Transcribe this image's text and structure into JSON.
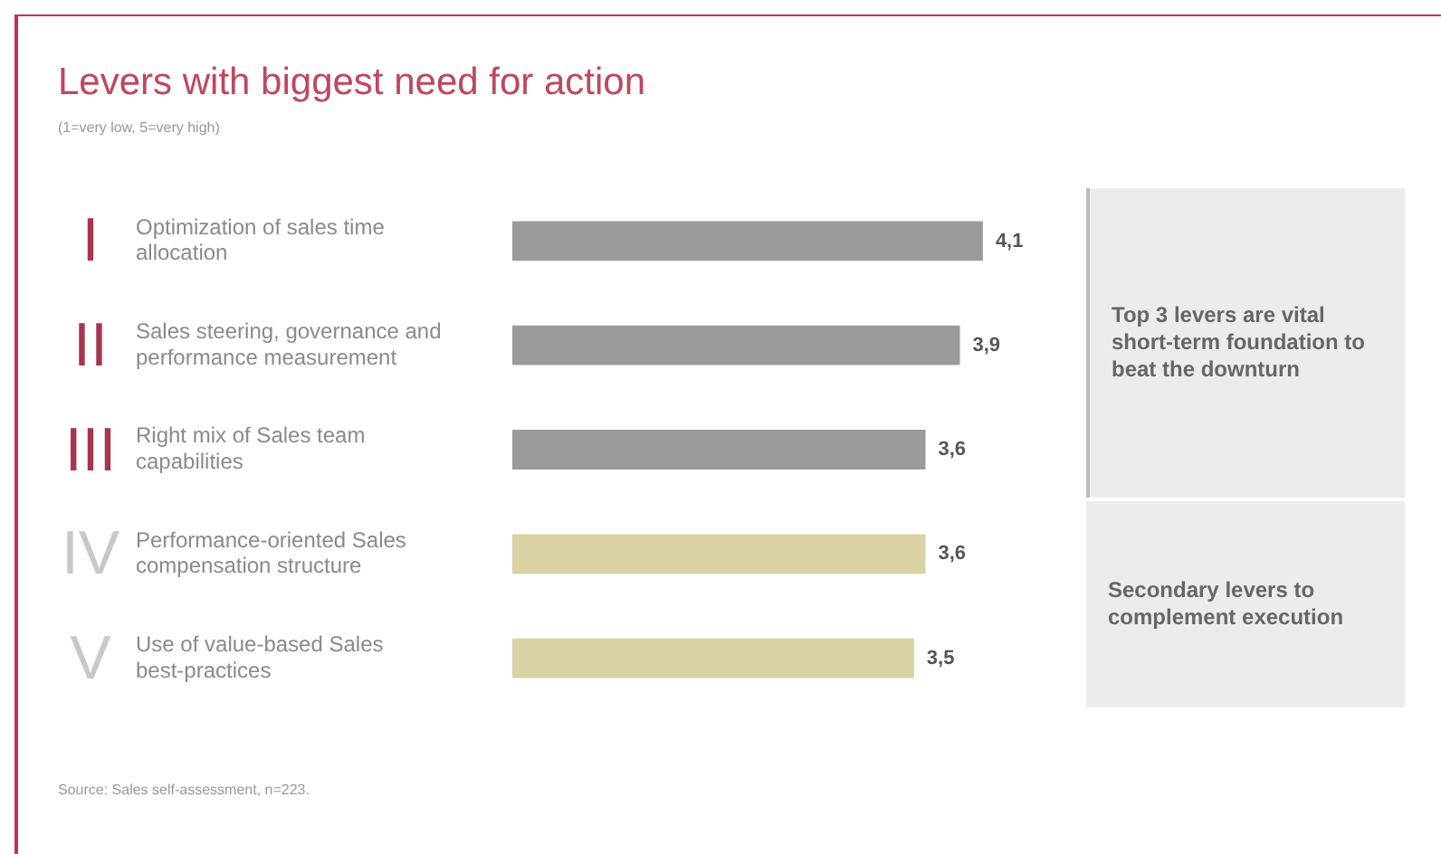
{
  "chart_data": {
    "type": "bar",
    "orientation": "horizontal",
    "title": "Levers with biggest need for action",
    "subtitle": "(1=very low, 5=very high)",
    "categories": [
      "Optimization of sales time allocation",
      "Sales steering, governance and performance measurement",
      "Right mix of Sales team capabilities",
      "Performance-oriented Sales compensation structure",
      "Use of value-based Sales best-practices"
    ],
    "values": [
      4.1,
      3.9,
      3.6,
      3.6,
      3.5
    ],
    "colors": [
      "#9a9b9d",
      "#9a9b9d",
      "#9a9b9d",
      "#d8d2a4",
      "#d8d2a4"
    ],
    "value_labels": [
      "4,1",
      "3,9",
      "3,6",
      "3,6",
      "3,5"
    ],
    "tick_labels": "y",
    "annotations": [
      "I",
      "II",
      "III",
      "IV",
      "V",
      "Top 3 levers are vital short-term foundation to beat the downturn",
      "Secondary levers to complement execution",
      "Source: Sales self-assessment, n=223."
    ]
  }
}
